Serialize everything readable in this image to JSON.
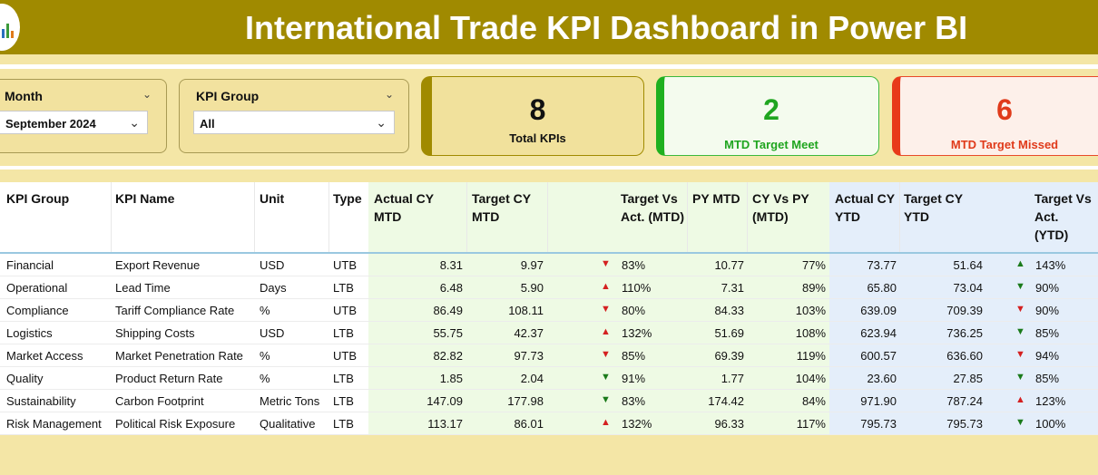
{
  "header": {
    "title": "International Trade KPI Dashboard in Power BI",
    "color": "#a08a00"
  },
  "slicers": {
    "month": {
      "label": "Month",
      "value": "September 2024"
    },
    "kpi_group": {
      "label": "KPI Group",
      "value": "All"
    }
  },
  "cards": {
    "total": {
      "value": "8",
      "label": "Total KPIs"
    },
    "meet": {
      "value": "2",
      "label": "MTD Target Meet",
      "color": "#1fa51f"
    },
    "missed": {
      "value": "6",
      "label": "MTD Target Missed",
      "color": "#e03a1a"
    }
  },
  "table": {
    "headers": {
      "kpi_group": "KPI Group",
      "kpi_name": "KPI Name",
      "unit": "Unit",
      "type": "Type",
      "actual_cy_mtd": "Actual CY MTD",
      "target_cy_mtd": "Target CY MTD",
      "target_vs_act_mtd": "Target Vs Act. (MTD)",
      "py_mtd": "PY MTD",
      "cy_vs_py_mtd": "CY Vs PY (MTD)",
      "actual_cy_ytd": "Actual CY YTD",
      "target_cy_ytd": "Target CY YTD",
      "target_vs_act_ytd": "Target Vs Act. (YTD)"
    },
    "rows": [
      {
        "group": "Financial",
        "name": "Export Revenue",
        "unit": "USD",
        "type": "UTB",
        "actual_mtd": "8.31",
        "target_mtd": "9.97",
        "mtd_icon": "down",
        "mtd_pct": "83%",
        "py_mtd": "10.77",
        "cy_vs_py": "77%",
        "actual_ytd": "73.77",
        "target_ytd": "51.64",
        "ytd_icon": "up",
        "ytd_pct": "143%"
      },
      {
        "group": "Operational",
        "name": "Lead Time",
        "unit": "Days",
        "type": "LTB",
        "actual_mtd": "6.48",
        "target_mtd": "5.90",
        "mtd_icon": "up",
        "mtd_pct": "110%",
        "py_mtd": "7.31",
        "cy_vs_py": "89%",
        "actual_ytd": "65.80",
        "target_ytd": "73.04",
        "ytd_icon": "down",
        "ytd_pct": "90%"
      },
      {
        "group": "Compliance",
        "name": "Tariff Compliance Rate",
        "unit": "%",
        "type": "UTB",
        "actual_mtd": "86.49",
        "target_mtd": "108.11",
        "mtd_icon": "down",
        "mtd_pct": "80%",
        "py_mtd": "84.33",
        "cy_vs_py": "103%",
        "actual_ytd": "639.09",
        "target_ytd": "709.39",
        "ytd_icon": "down",
        "ytd_pct": "90%"
      },
      {
        "group": "Logistics",
        "name": "Shipping Costs",
        "unit": "USD",
        "type": "LTB",
        "actual_mtd": "55.75",
        "target_mtd": "42.37",
        "mtd_icon": "up",
        "mtd_pct": "132%",
        "py_mtd": "51.69",
        "cy_vs_py": "108%",
        "actual_ytd": "623.94",
        "target_ytd": "736.25",
        "ytd_icon": "down",
        "ytd_pct": "85%"
      },
      {
        "group": "Market Access",
        "name": "Market Penetration Rate",
        "unit": "%",
        "type": "UTB",
        "actual_mtd": "82.82",
        "target_mtd": "97.73",
        "mtd_icon": "down",
        "mtd_pct": "85%",
        "py_mtd": "69.39",
        "cy_vs_py": "119%",
        "actual_ytd": "600.57",
        "target_ytd": "636.60",
        "ytd_icon": "down",
        "ytd_pct": "94%"
      },
      {
        "group": "Quality",
        "name": "Product Return Rate",
        "unit": "%",
        "type": "LTB",
        "actual_mtd": "1.85",
        "target_mtd": "2.04",
        "mtd_icon": "down",
        "mtd_pct": "91%",
        "py_mtd": "1.77",
        "cy_vs_py": "104%",
        "actual_ytd": "23.60",
        "target_ytd": "27.85",
        "ytd_icon": "down",
        "ytd_pct": "85%"
      },
      {
        "group": "Sustainability",
        "name": "Carbon Footprint",
        "unit": "Metric Tons",
        "type": "LTB",
        "actual_mtd": "147.09",
        "target_mtd": "177.98",
        "mtd_icon": "down",
        "mtd_pct": "83%",
        "py_mtd": "174.42",
        "cy_vs_py": "84%",
        "actual_ytd": "971.90",
        "target_ytd": "787.24",
        "ytd_icon": "up",
        "ytd_pct": "123%"
      },
      {
        "group": "Risk Management",
        "name": "Political Risk Exposure",
        "unit": "Qualitative",
        "type": "LTB",
        "actual_mtd": "113.17",
        "target_mtd": "86.01",
        "mtd_icon": "up",
        "mtd_pct": "132%",
        "py_mtd": "96.33",
        "cy_vs_py": "117%",
        "actual_ytd": "795.73",
        "target_ytd": "795.73",
        "ytd_icon": "down",
        "ytd_pct": "100%"
      }
    ]
  },
  "colors": {
    "good": "#1a7a1a",
    "bad": "#d42020",
    "mtd_bg": "#eefae4",
    "ytd_bg": "#e4eefa"
  }
}
